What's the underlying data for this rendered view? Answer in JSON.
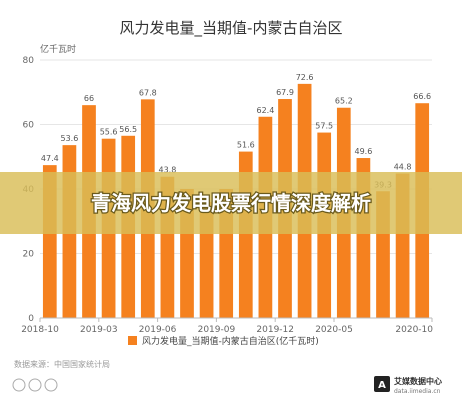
{
  "page": {
    "title": "风力发电量_当期值-内蒙古自治区",
    "unit": "亿千瓦时",
    "banner": "青海风力发电股票行情深度解析",
    "source": "数据来源：中国国家统计局",
    "logo_name": "艾媒数据中心",
    "logo_url": "data.iimedia.cn",
    "legend_label": "风力发电量_当期值-内蒙古自治区(亿千瓦时)"
  },
  "colors": {
    "bar": "#f5811f",
    "banner": "#d9bd57",
    "grid": "#e6e6e6",
    "axis": "#bbbbbb"
  },
  "chart_data": {
    "type": "bar",
    "title": "风力发电量_当期值-内蒙古自治区",
    "ylabel": "亿千瓦时",
    "ylim": [
      0,
      80
    ],
    "yticks": [
      0,
      20,
      40,
      60,
      80
    ],
    "grid": true,
    "legend_position": "bottom",
    "series": [
      {
        "name": "风力发电量_当期值-内蒙古自治区(亿千瓦时)",
        "values": [
          47.4,
          53.6,
          66,
          55.6,
          56.5,
          67.8,
          43.8,
          40,
          36,
          40,
          51.6,
          62.4,
          67.9,
          72.6,
          57.5,
          65.2,
          49.6,
          39.3,
          44.8,
          66.6
        ]
      }
    ],
    "value_labels": [
      "47.4",
      "53.6",
      "66",
      "55.6",
      "56.5",
      "67.8",
      "43.8",
      "",
      "",
      "",
      "51.6",
      "62.4",
      "67.9",
      "72.6",
      "57.5",
      "65.2",
      "49.6",
      "39.3",
      "44.8",
      "66.6"
    ],
    "x_ticks": [
      {
        "index": 0,
        "label": "2018-10"
      },
      {
        "index": 3,
        "label": "2019-03"
      },
      {
        "index": 6,
        "label": "2019-06"
      },
      {
        "index": 9,
        "label": "2019-09"
      },
      {
        "index": 12,
        "label": "2019-12"
      },
      {
        "index": 15,
        "label": "2020-05"
      },
      {
        "index": 20,
        "label": "2020-10"
      }
    ]
  }
}
